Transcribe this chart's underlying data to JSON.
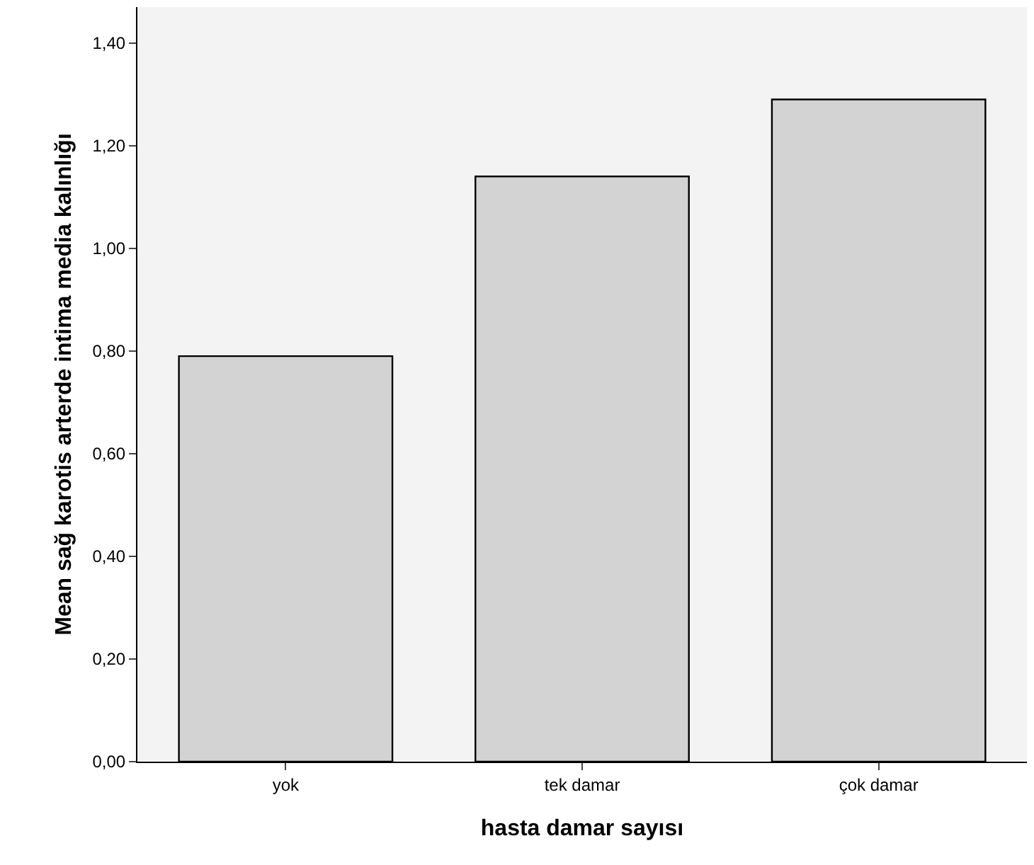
{
  "chart_data": {
    "type": "bar",
    "xlabel": "hasta damar sayısı",
    "ylabel": "Mean sağ karotis arterde intima media kalınlığı",
    "categories": [
      "yok",
      "tek damar",
      "çok damar"
    ],
    "values": [
      0.79,
      1.14,
      1.29
    ],
    "color": "#d3d3d3",
    "ylim": [
      0,
      1.47
    ],
    "yticks": [
      {
        "value": 0,
        "label": "0,00"
      },
      {
        "value": 0.2,
        "label": "0,20"
      },
      {
        "value": 0.4,
        "label": "0,40"
      },
      {
        "value": 0.6,
        "label": "0,60"
      },
      {
        "value": 0.8,
        "label": "0,80"
      },
      {
        "value": 1.0,
        "label": "1,00"
      },
      {
        "value": 1.2,
        "label": "1,20"
      },
      {
        "value": 1.4,
        "label": "1,40"
      }
    ],
    "grid": false,
    "legend": false
  }
}
